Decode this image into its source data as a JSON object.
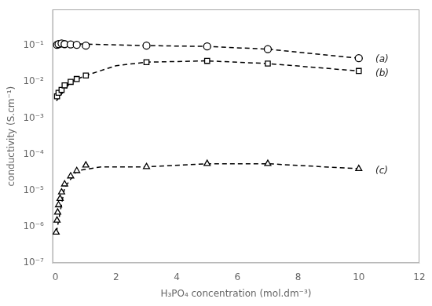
{
  "chart_data": {
    "type": "scatter",
    "xlabel": "H₃PO₄ concentration (mol.dm⁻³)",
    "ylabel": "conductivity (S.cm⁻¹)",
    "log": "y",
    "grid": false,
    "xlim": [
      -0.1,
      12
    ],
    "ylim": [
      1e-07,
      1
    ],
    "xticks": [
      0,
      2,
      4,
      6,
      8,
      10,
      12
    ],
    "yticks": [
      {
        "value": 1e-07,
        "label": "10⁻⁷"
      },
      {
        "value": 1e-06,
        "label": "10⁻⁶"
      },
      {
        "value": 1e-05,
        "label": "10⁻⁵"
      },
      {
        "value": 0.0001,
        "label": "10⁻⁴"
      },
      {
        "value": 0.001,
        "label": "10⁻³"
      },
      {
        "value": 0.01,
        "label": "10⁻²"
      },
      {
        "value": 0.1,
        "label": "10⁻¹"
      }
    ],
    "series": [
      {
        "type": "line",
        "line_style": "dashed",
        "color": "#000000",
        "x": [
          0.03,
          0.5,
          1.0,
          2.0,
          3.0,
          5.0,
          7.0,
          10.0
        ],
        "values": [
          0.105,
          0.112,
          0.11,
          0.105,
          0.1,
          0.095,
          0.08,
          0.045
        ]
      },
      {
        "type": "scatter",
        "marker": "circle",
        "color": "#000000",
        "x": [
          0.05,
          0.1,
          0.2,
          0.3,
          0.5,
          0.7,
          1.0,
          3.0,
          5.0,
          7.0,
          10.0
        ],
        "values": [
          0.105,
          0.11,
          0.115,
          0.11,
          0.108,
          0.105,
          0.1,
          0.1,
          0.095,
          0.08,
          0.045
        ]
      },
      {
        "type": "line",
        "line_style": "dashed",
        "color": "#000000",
        "x": [
          0.03,
          0.5,
          1.0,
          2.0,
          3.0,
          5.0,
          7.0,
          10.0
        ],
        "values": [
          0.003,
          0.01,
          0.015,
          0.028,
          0.035,
          0.038,
          0.032,
          0.02
        ]
      },
      {
        "type": "scatter",
        "marker": "square",
        "color": "#000000",
        "x": [
          0.05,
          0.1,
          0.2,
          0.3,
          0.5,
          0.7,
          1.0,
          3.0,
          5.0,
          7.0,
          10.0
        ],
        "values": [
          0.004,
          0.005,
          0.006,
          0.008,
          0.01,
          0.012,
          0.015,
          0.035,
          0.038,
          0.032,
          0.02
        ]
      },
      {
        "type": "line",
        "line_style": "dashed",
        "color": "#000000",
        "x": [
          0.03,
          0.3,
          0.7,
          1.5,
          3.0,
          5.0,
          7.0,
          10.0
        ],
        "values": [
          7e-07,
          1.2e-05,
          3.5e-05,
          4.5e-05,
          4.5e-05,
          5.5e-05,
          5.5e-05,
          4e-05
        ]
      },
      {
        "type": "scatter",
        "marker": "triangle",
        "color": "#000000",
        "x": [
          0.02,
          0.05,
          0.07,
          0.1,
          0.15,
          0.2,
          0.3,
          0.5,
          0.7,
          1.0,
          3.0,
          5.0,
          7.0,
          10.0
        ],
        "values": [
          7e-07,
          1.5e-06,
          2.5e-06,
          4e-06,
          6e-06,
          9e-06,
          1.5e-05,
          2.5e-05,
          3.5e-05,
          5e-05,
          4.5e-05,
          5.5e-05,
          5.5e-05,
          4e-05
        ]
      }
    ],
    "annotations": [
      {
        "text": "(a)",
        "x": 10.55,
        "y": 0.042
      },
      {
        "text": "(b)",
        "x": 10.55,
        "y": 0.017
      },
      {
        "text": "(c)",
        "x": 10.55,
        "y": 3.5e-05
      }
    ]
  }
}
